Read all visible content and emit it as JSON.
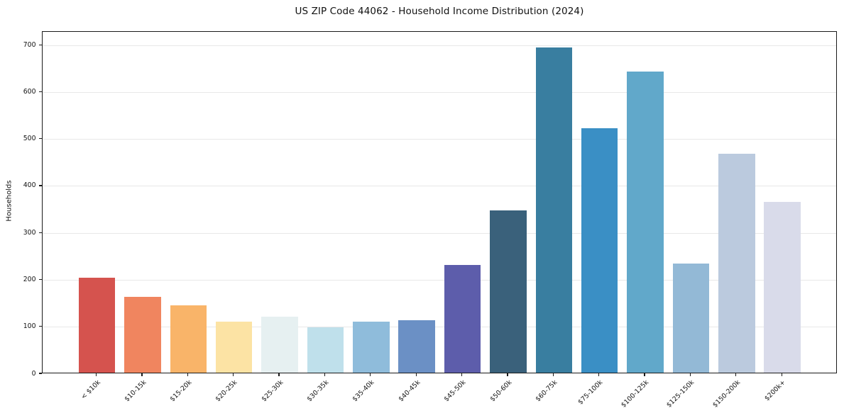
{
  "chart_data": {
    "type": "bar",
    "title": "US ZIP Code 44062 - Household Income Distribution (2024)",
    "xlabel": "",
    "ylabel": "Households",
    "categories": [
      "< $10k",
      "$10-15k",
      "$15-20k",
      "$20-25k",
      "$25-30k",
      "$30-35k",
      "$35-40k",
      "$40-45k",
      "$45-50k",
      "$50-60k",
      "$60-75k",
      "$75-100k",
      "$100-125k",
      "$125-150k",
      "$150-200k",
      "$200k+"
    ],
    "values": [
      202,
      162,
      143,
      109,
      120,
      97,
      109,
      111,
      229,
      345,
      693,
      521,
      642,
      232,
      467,
      364
    ],
    "bar_colors": [
      "#d5534e",
      "#f0855f",
      "#f9b469",
      "#fce3a4",
      "#e6f0f1",
      "#bfe0eb",
      "#8fbcdb",
      "#6b90c5",
      "#5d5dab",
      "#3a617b",
      "#397ea0",
      "#3a8fc5",
      "#61a8ca",
      "#93b9d6",
      "#bbcade",
      "#d9dbea"
    ],
    "yticks": [
      0,
      100,
      200,
      300,
      400,
      500,
      600,
      700
    ],
    "ylim": [
      0,
      729
    ],
    "grid": "horizontal",
    "gridline_color": "#e8e8e8",
    "spine_color": "#1a1a1a",
    "background_color": "#ffffff",
    "legend": "none"
  }
}
